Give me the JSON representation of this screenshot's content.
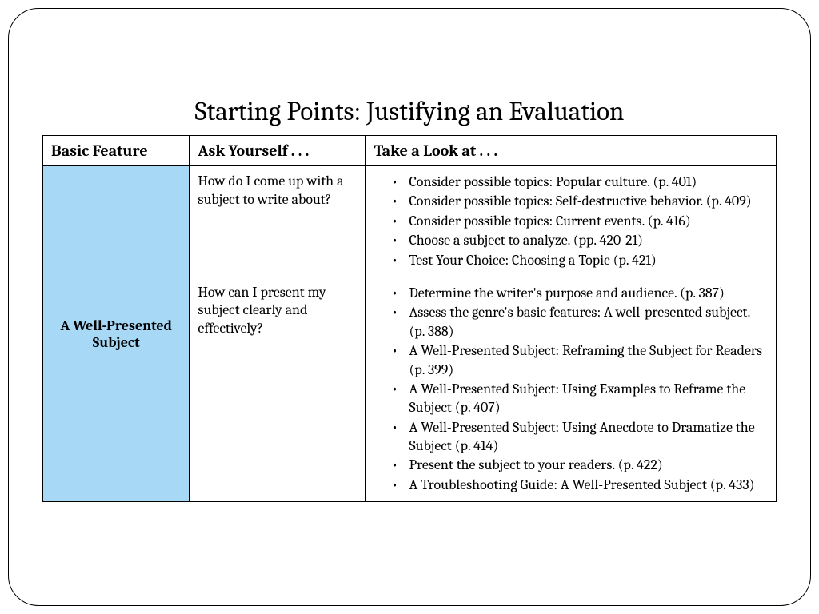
{
  "title": "Starting Points: Justifying an Evaluation",
  "headers": {
    "col1": "Basic Feature",
    "col2": "Ask Yourself . . .",
    "col3": "Take a Look at . . ."
  },
  "featureLabel": "A Well-Presented Subject",
  "rows": [
    {
      "ask": "How do I come up with a subject to write about?",
      "look": [
        "Consider possible topics: Popular culture. (p. 401)",
        "Consider possible topics: Self-destructive behavior. (p. 409)",
        "Consider possible topics: Current events. (p. 416)",
        "Choose a subject to analyze. (pp. 420-21)",
        "Test Your Choice: Choosing a Topic (p. 421)"
      ]
    },
    {
      "ask": "How can I present my subject clearly and effectively?",
      "look": [
        "Determine the writer's purpose and audience. (p. 387)",
        "Assess the genre's basic features: A well-presented subject. (p. 388)",
        "A Well-Presented Subject: Reframing the Subject for Readers (p. 399)",
        "A Well-Presented Subject: Using Examples to Reframe the Subject (p. 407)",
        "A Well-Presented Subject: Using Anecdote to Dramatize the Subject (p. 414)",
        "Present the subject to your readers. (p. 422)",
        "A Troubleshooting Guide: A Well-Presented Subject (p. 433)"
      ]
    }
  ],
  "colors": {
    "featureBg": "#a7d8f5",
    "border": "#000000",
    "background": "#ffffff"
  }
}
